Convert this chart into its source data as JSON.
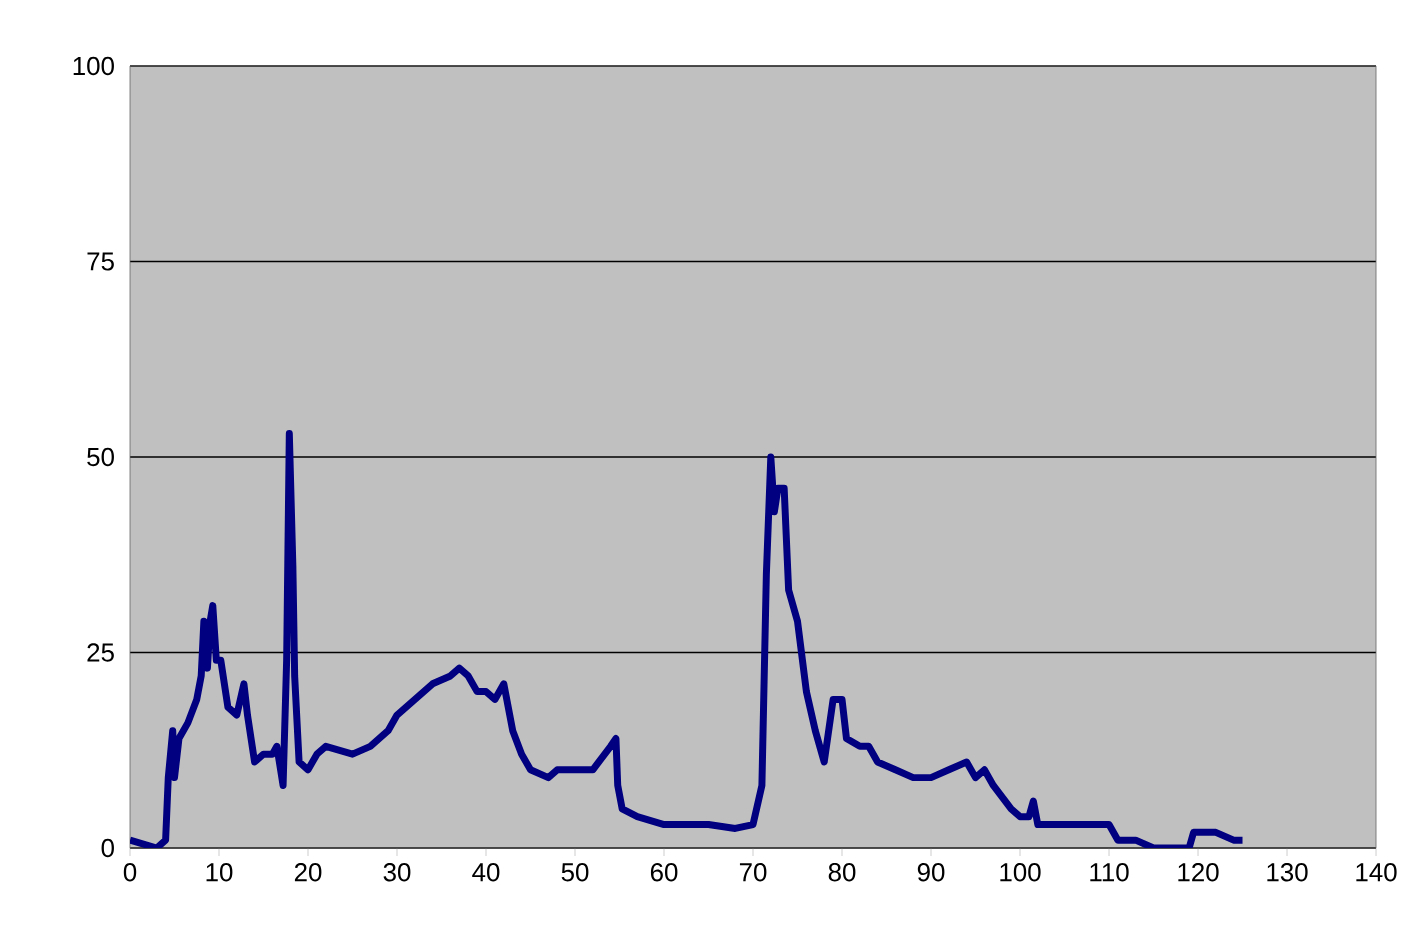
{
  "chart_data": {
    "type": "line",
    "color": "#000080",
    "grid": "y",
    "xlim": [
      0,
      140
    ],
    "ylim": [
      0,
      100
    ],
    "xticks": [
      0,
      10,
      20,
      30,
      40,
      50,
      60,
      70,
      80,
      90,
      100,
      110,
      120,
      130,
      140
    ],
    "yticks": [
      0,
      25,
      50,
      75,
      100
    ],
    "x": [
      0,
      3,
      4,
      4.3,
      4.8,
      5,
      5.5,
      6.5,
      7.5,
      8,
      8.3,
      8.7,
      9,
      9.3,
      9.7,
      10.2,
      11,
      12,
      12.8,
      13.2,
      14,
      15,
      16,
      16.5,
      17.2,
      17.6,
      17.9,
      18.3,
      18.5,
      19,
      20,
      21,
      22,
      25,
      27,
      29,
      30,
      32,
      34,
      36,
      37,
      38,
      39,
      40,
      41,
      42,
      43,
      44,
      45,
      47,
      48,
      50,
      52,
      54,
      54.6,
      54.8,
      55.3,
      57,
      60,
      65,
      68,
      70,
      71,
      71.5,
      72,
      72.4,
      72.8,
      73.5,
      74,
      75,
      76,
      77,
      78,
      79,
      80,
      80.5,
      82,
      83,
      84,
      86,
      88,
      90,
      92,
      94,
      95,
      96,
      97,
      99,
      100,
      101,
      101.5,
      102,
      105,
      108,
      110,
      111,
      113,
      115,
      119,
      119.5,
      122,
      124,
      125
    ],
    "values": [
      1,
      0,
      1,
      9,
      15,
      9,
      14,
      16,
      19,
      22,
      29,
      23,
      29,
      31,
      24,
      24,
      18,
      17,
      21,
      17,
      11,
      12,
      12,
      13,
      8,
      24,
      53,
      36,
      22,
      11,
      10,
      12,
      13,
      12,
      13,
      15,
      17,
      19,
      21,
      22,
      23,
      22,
      20,
      20,
      19,
      21,
      15,
      12,
      10,
      9,
      10,
      10,
      10,
      13,
      14,
      8,
      5,
      4,
      3,
      3,
      2.5,
      3,
      8,
      35,
      50,
      43,
      46,
      46,
      33,
      29,
      20,
      15,
      11,
      19,
      19,
      14,
      13,
      13,
      11,
      10,
      9,
      9,
      10,
      11,
      9,
      10,
      8,
      5,
      4,
      4,
      6,
      3,
      3,
      3,
      3,
      1,
      1,
      0,
      0,
      2,
      2,
      1,
      1
    ]
  }
}
